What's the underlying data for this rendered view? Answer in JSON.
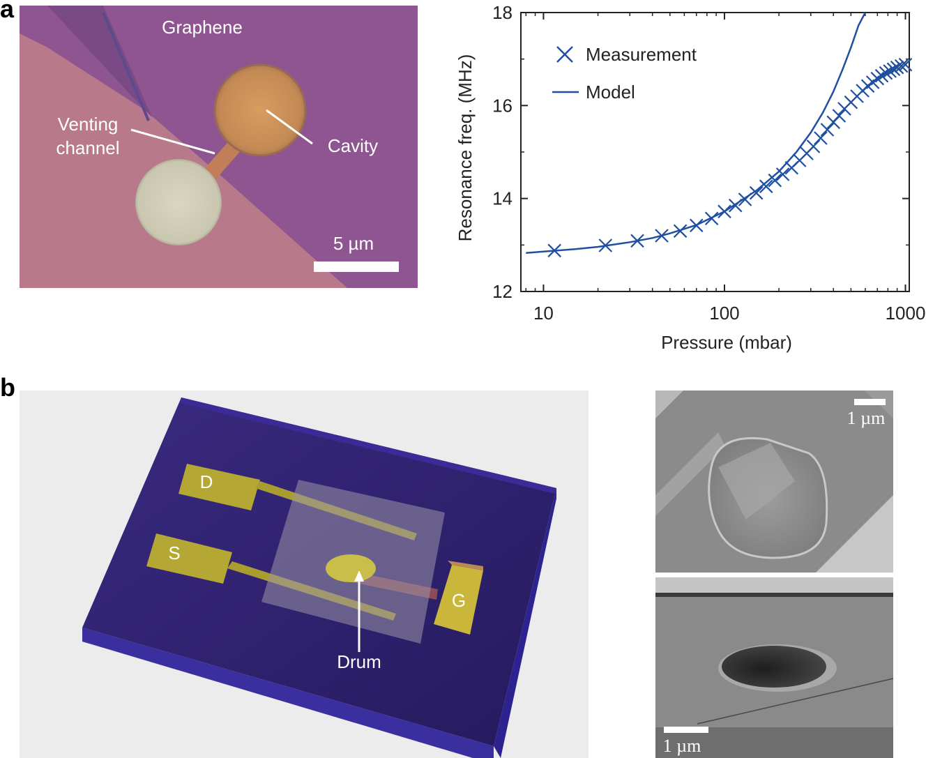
{
  "panel_a": {
    "letter": "a",
    "micrograph": {
      "graphene_label": "Graphene",
      "venting_label_line1": "Venting",
      "venting_label_line2": "channel",
      "cavity_label": "Cavity",
      "scalebar_label": "5 µm"
    }
  },
  "panel_b": {
    "letter": "b",
    "device": {
      "drain_label": "D",
      "source_label": "S",
      "gate_label": "G",
      "drum_label": "Drum"
    },
    "sem_top_scalebar": "1 µm",
    "sem_bottom_scalebar": "1 µm"
  },
  "colors": {
    "series": "#1f4fa0",
    "substrate": "#2a1f6b",
    "gold": "#b5a733"
  },
  "chart_data": {
    "type": "scatter",
    "xscale": "log",
    "xlim": [
      7.5,
      1050
    ],
    "ylim": [
      12,
      18
    ],
    "xticks": [
      10,
      100,
      1000
    ],
    "xtick_labels": [
      "10",
      "100",
      "1000"
    ],
    "yticks": [
      12,
      14,
      16,
      18
    ],
    "ytick_labels": [
      "12",
      "14",
      "16",
      "18"
    ],
    "xlabel": "Pressure (mbar)",
    "ylabel": "Resonance freq. (MHz)",
    "legend_position": "top-left",
    "series": [
      {
        "name": "Measurement",
        "marker": "x",
        "x": [
          11.5,
          22,
          33,
          45,
          57,
          70,
          85,
          100,
          115,
          130,
          150,
          170,
          190,
          210,
          235,
          260,
          285,
          310,
          340,
          370,
          400,
          430,
          460,
          500,
          540,
          580,
          620,
          660,
          700,
          740,
          780,
          820,
          860,
          900,
          950,
          1000
        ],
        "y": [
          12.88,
          12.99,
          13.09,
          13.2,
          13.3,
          13.42,
          13.57,
          13.72,
          13.85,
          13.98,
          14.12,
          14.26,
          14.39,
          14.52,
          14.66,
          14.82,
          14.97,
          15.12,
          15.3,
          15.48,
          15.64,
          15.78,
          15.93,
          16.07,
          16.2,
          16.32,
          16.42,
          16.5,
          16.58,
          16.64,
          16.7,
          16.74,
          16.78,
          16.82,
          16.85,
          16.88
        ]
      },
      {
        "name": "Model",
        "marker": "line",
        "x": [
          8,
          10,
          15,
          20,
          30,
          40,
          50,
          70,
          100,
          150,
          200,
          250,
          300,
          350,
          400,
          450,
          500,
          550,
          600
        ],
        "y": [
          12.83,
          12.86,
          12.91,
          12.96,
          13.06,
          13.15,
          13.25,
          13.43,
          13.72,
          14.17,
          14.58,
          15.0,
          15.42,
          15.85,
          16.3,
          16.78,
          17.25,
          17.72,
          18.0
        ]
      }
    ]
  }
}
